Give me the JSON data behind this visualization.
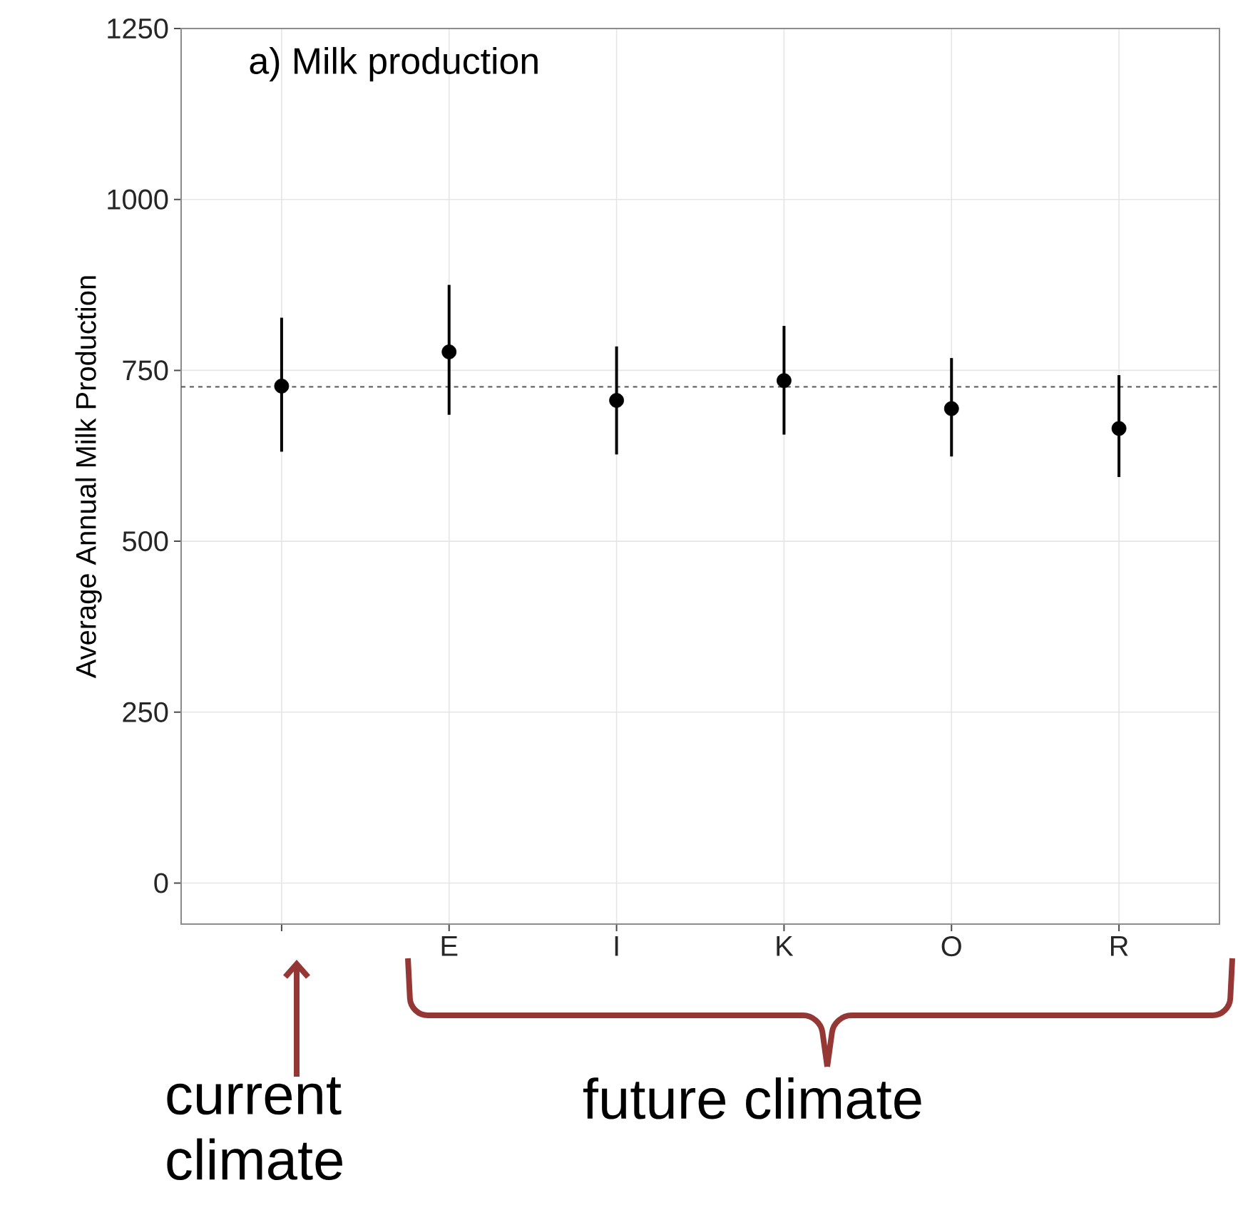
{
  "chart_data": {
    "type": "scatter",
    "title": "a) Milk production",
    "ylabel": "Average Annual Milk Production",
    "categories": [
      null,
      "E",
      "I",
      "K",
      "O",
      "R"
    ],
    "values": [
      727,
      777,
      706,
      735,
      694,
      665
    ],
    "errors": [
      [
        631,
        827
      ],
      [
        685,
        875
      ],
      [
        627,
        785
      ],
      [
        656,
        815
      ],
      [
        624,
        768
      ],
      [
        594,
        743
      ]
    ],
    "color": "#000000",
    "marker": "circle",
    "ylim": [
      -60,
      1250
    ],
    "yticks": [
      0,
      250,
      500,
      750,
      1000,
      1250
    ],
    "grid": true,
    "ref_lines": [
      {
        "axis": "y",
        "value": 726,
        "color": "#555555",
        "line_style": "dashed"
      }
    ],
    "annotations": [
      "current climate",
      "future climate"
    ]
  }
}
